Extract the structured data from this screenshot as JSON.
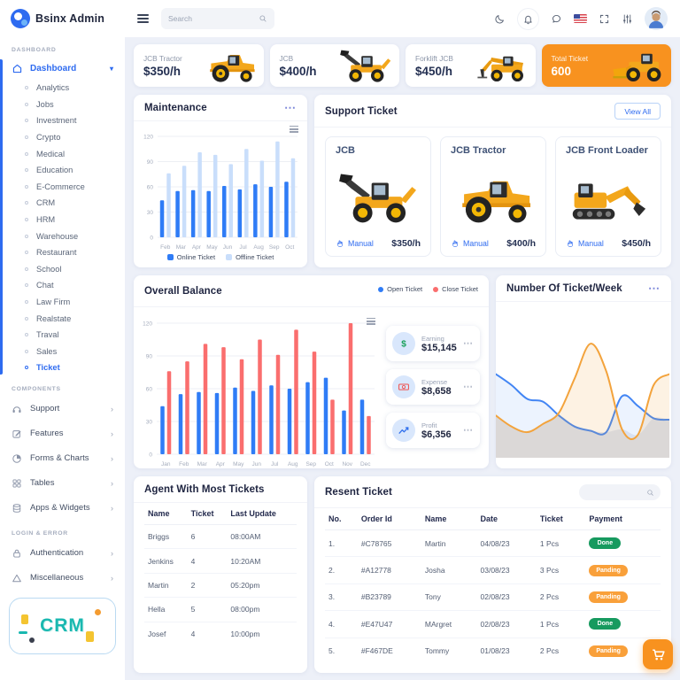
{
  "brand": {
    "name": "Bsinx Admin"
  },
  "topbar": {
    "search_placeholder": "Search",
    "icons": [
      "moon",
      "notification-bell",
      "chat",
      "us-flag",
      "fullscreen",
      "sliders",
      "user-avatar"
    ]
  },
  "sidebar": {
    "section_dashboard": "DASHBOARD",
    "dashboard_label": "Dashboard",
    "dashboard_sub": [
      {
        "label": "Analytics",
        "cls": ""
      },
      {
        "label": "Jobs",
        "cls": ""
      },
      {
        "label": "Investment",
        "cls": ""
      },
      {
        "label": "Crypto",
        "cls": ""
      },
      {
        "label": "Medical",
        "cls": ""
      },
      {
        "label": "Education",
        "cls": ""
      },
      {
        "label": "E-Commerce",
        "cls": ""
      },
      {
        "label": "CRM",
        "cls": ""
      },
      {
        "label": "HRM",
        "cls": ""
      },
      {
        "label": "Warehouse",
        "cls": ""
      },
      {
        "label": "Restaurant",
        "cls": ""
      },
      {
        "label": "School",
        "cls": ""
      },
      {
        "label": "Chat",
        "cls": ""
      },
      {
        "label": "Law Firm",
        "cls": ""
      },
      {
        "label": "Realstate",
        "cls": ""
      },
      {
        "label": "Traval",
        "cls": ""
      },
      {
        "label": "Sales",
        "cls": ""
      },
      {
        "label": "Ticket",
        "cls": "active"
      }
    ],
    "section_components": "COMPONENTS",
    "component_items": [
      {
        "label": "Support",
        "icon": "headset"
      },
      {
        "label": "Features",
        "icon": "edit"
      },
      {
        "label": "Forms & Charts",
        "icon": "pie"
      },
      {
        "label": "Tables",
        "icon": "grid"
      },
      {
        "label": "Apps & Widgets",
        "icon": "stack"
      }
    ],
    "section_login": "LOGIN & ERROR",
    "login_items": [
      {
        "label": "Authentication",
        "icon": "lock"
      },
      {
        "label": "Miscellaneous",
        "icon": "warning"
      }
    ],
    "crm_text": "CRM"
  },
  "summary_cards": [
    {
      "label": "JCB Tractor",
      "value": "$350/h",
      "type": "tractor",
      "cls": ""
    },
    {
      "label": "JCB",
      "value": "$400/h",
      "type": "backhoe",
      "cls": ""
    },
    {
      "label": "Forklift JCB",
      "value": "$450/h",
      "type": "forklift",
      "cls": ""
    },
    {
      "label": "Total Ticket",
      "value": "600",
      "type": "loader",
      "cls": "highlight"
    }
  ],
  "maintenance": {
    "title": "Maintenance"
  },
  "support_ticket": {
    "title": "Support Ticket",
    "view_all": "View All",
    "cards": [
      {
        "name": "JCB",
        "action": "Manual",
        "price": "$350/h",
        "type": "backhoe"
      },
      {
        "name": "JCB Tractor",
        "action": "Manual",
        "price": "$400/h",
        "type": "tractor"
      },
      {
        "name": "JCB Front Loader",
        "action": "Manual",
        "price": "$450/h",
        "type": "excavator"
      }
    ]
  },
  "overall_balance": {
    "title": "Overall Balance",
    "stats": [
      {
        "label": "Earning",
        "value": "$15,145",
        "icon": "dollar",
        "icon_color": "#18a05a"
      },
      {
        "label": "Expense",
        "value": "$8,658",
        "icon": "banknote",
        "icon_color": "#ef5350"
      },
      {
        "label": "Profit",
        "value": "$6,356",
        "icon": "trend",
        "icon_color": "#2f6fed"
      }
    ]
  },
  "ticket_week": {
    "title": "Number Of Ticket/Week"
  },
  "agent_table": {
    "title": "Agent With Most Tickets",
    "headers": [
      "Name",
      "Ticket",
      "Last Update"
    ],
    "rows": [
      [
        "Briggs",
        "6",
        "08:00AM"
      ],
      [
        "Jenkins",
        "4",
        "10:20AM"
      ],
      [
        "Martin",
        "2",
        "05:20pm"
      ],
      [
        "Hella",
        "5",
        "08:00pm"
      ],
      [
        "Josef",
        "4",
        "10:00pm"
      ]
    ]
  },
  "recent_table": {
    "title": "Resent Ticket",
    "headers": [
      "No.",
      "Order Id",
      "Name",
      "Date",
      "Ticket",
      "Payment"
    ],
    "rows": [
      {
        "no": "1.",
        "order": "#C78765",
        "name": "Martin",
        "date": "04/08/23",
        "qty": "1 Pcs",
        "status": "Done",
        "status_cls": "done"
      },
      {
        "no": "2.",
        "order": "#A12778",
        "name": "Josha",
        "date": "03/08/23",
        "qty": "3 Pcs",
        "status": "Panding",
        "status_cls": "panding"
      },
      {
        "no": "3.",
        "order": "#B23789",
        "name": "Tony",
        "date": "02/08/23",
        "qty": "2 Pcs",
        "status": "Panding",
        "status_cls": "panding"
      },
      {
        "no": "4.",
        "order": "#E47U47",
        "name": "MArgret",
        "date": "02/08/23",
        "qty": "1 Pcs",
        "status": "Done",
        "status_cls": "done"
      },
      {
        "no": "5.",
        "order": "#F467DE",
        "name": "Tommy",
        "date": "01/08/23",
        "qty": "2 Pcs",
        "status": "Panding",
        "status_cls": "panding"
      }
    ]
  },
  "chart_data": [
    {
      "id": "maintenance",
      "type": "bar",
      "title": "Maintenance",
      "categories": [
        "Feb",
        "Mar",
        "Apr",
        "May",
        "Jun",
        "Jul",
        "Aug",
        "Sep",
        "Oct"
      ],
      "series": [
        {
          "name": "Online Ticket",
          "color": "#2f7cf6",
          "values": [
            44,
            55,
            56,
            55,
            61,
            57,
            63,
            60,
            66
          ]
        },
        {
          "name": "Offline Ticket",
          "color": "#c9defb",
          "values": [
            76,
            85,
            101,
            98,
            87,
            105,
            91,
            114,
            94
          ]
        }
      ],
      "ylim": [
        0,
        120
      ],
      "yticks": [
        0,
        30,
        60,
        90,
        120
      ],
      "grid": true,
      "legend_position": "bottom"
    },
    {
      "id": "overall_balance",
      "type": "bar",
      "title": "Overall Balance",
      "categories": [
        "Jan",
        "Feb",
        "Mar",
        "Apr",
        "May",
        "Jun",
        "Jul",
        "Aug",
        "Sep",
        "Oct",
        "Nov",
        "Dec"
      ],
      "series": [
        {
          "name": "Open Ticket",
          "color": "#2f7cf6",
          "values": [
            44,
            55,
            57,
            56,
            61,
            58,
            63,
            60,
            66,
            70,
            40,
            50
          ]
        },
        {
          "name": "Close Ticket",
          "color": "#fa6e6e",
          "values": [
            76,
            85,
            101,
            98,
            87,
            105,
            91,
            114,
            94,
            50,
            120,
            35
          ]
        }
      ],
      "ylim": [
        0,
        120
      ],
      "yticks": [
        0,
        30,
        60,
        90,
        120
      ],
      "grid": true,
      "legend_position": "top-right"
    },
    {
      "id": "ticket_week",
      "type": "area",
      "title": "Number Of Ticket/Week",
      "x": [
        0,
        1,
        2,
        3,
        4,
        5,
        6,
        7,
        8,
        9,
        10,
        11
      ],
      "ylim": [
        0,
        100
      ],
      "grid": false,
      "legend_position": "none",
      "series": [
        {
          "name": "s1",
          "color": "#4285f4",
          "fill": "rgba(66,133,244,0.10)",
          "values": [
            58,
            50,
            40,
            38,
            28,
            20,
            17,
            16,
            42,
            35,
            26,
            25
          ]
        },
        {
          "name": "s2",
          "color": "#f3a33c",
          "fill": "rgba(243,163,60,0.14)",
          "values": [
            28,
            20,
            16,
            22,
            30,
            55,
            80,
            60,
            18,
            14,
            50,
            58
          ]
        }
      ]
    }
  ]
}
